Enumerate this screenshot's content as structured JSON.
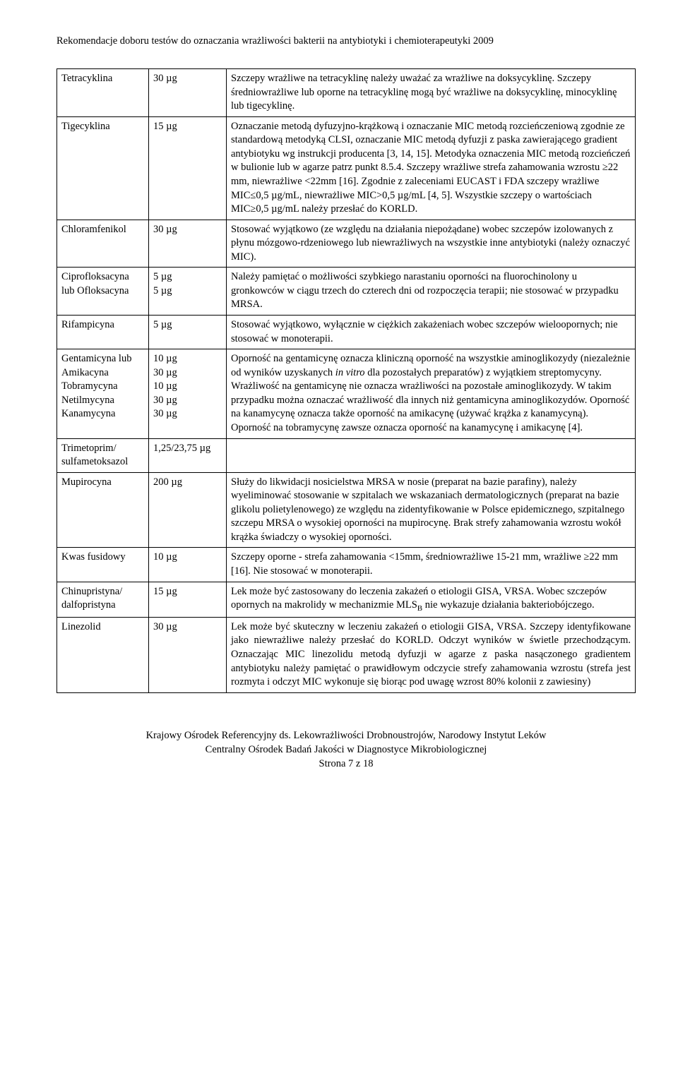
{
  "header": "Rekomendacje doboru testów do oznaczania wrażliwości bakterii na antybiotyki i chemioterapeutyki 2009",
  "rows": [
    {
      "name": "Tetracyklina",
      "dose": "30 µg",
      "desc": "Szczepy wrażliwe na tetracyklinę należy uważać za wrażliwe na doksycyklinę. Szczepy średniowrażliwe lub oporne na tetracyklinę mogą być wrażliwe na doksycyklinę, minocyklinę lub tigecyklinę."
    },
    {
      "name": "Tigecyklina",
      "dose": "15 µg",
      "desc": "Oznaczanie metodą dyfuzyjno-krążkową i oznaczanie MIC metodą rozcieńczeniową zgodnie ze standardową metodyką CLSI, oznaczanie MIC metodą dyfuzji z paska zawierającego gradient antybiotyku wg instrukcji producenta [3, 14, 15]. Metodyka oznaczenia MIC metodą rozcieńczeń w bulionie lub w agarze patrz punkt 8.5.4. Szczepy wrażliwe strefa zahamowania wzrostu ≥22 mm, niewrażliwe <22mm [16]. Zgodnie z zaleceniami EUCAST i FDA szczepy wrażliwe MIC≤0,5 µg/mL, niewrażliwe MIC>0,5 µg/mL [4, 5]. Wszystkie szczepy o wartościach MIC≥0,5 µg/mL należy przesłać do KORLD."
    },
    {
      "name": "Chloramfenikol",
      "dose": "30 µg",
      "desc": "Stosować wyjątkowo (ze względu na działania niepożądane) wobec szczepów izolowanych z płynu mózgowo-rdzeniowego lub niewrażliwych na wszystkie inne antybiotyki (należy oznaczyć MIC)."
    },
    {
      "name": "Ciprofloksacyna\nlub Ofloksacyna",
      "dose": "5 µg\n5 µg",
      "desc": "Należy pamiętać o możliwości szybkiego narastaniu oporności na fluorochinolony u gronkowców w ciągu trzech do czterech dni od rozpoczęcia terapii; nie stosować w przypadku MRSA."
    },
    {
      "name": "Rifampicyna",
      "dose": "5 µg",
      "desc": "Stosować wyjątkowo, wyłącznie w ciężkich zakażeniach wobec szczepów wieloopornych; nie stosować w monoterapii."
    },
    {
      "name": "Gentamicyna lub\nAmikacyna\nTobramycyna\nNetilmycyna\nKanamycyna",
      "dose": "10 µg\n30 µg\n10 µg\n30 µg\n30 µg",
      "desc_html": "Oporność na gentamicynę oznacza kliniczną oporność na wszystkie aminoglikozydy (niezależnie od wyników uzyskanych <i>in vitro</i> dla pozostałych preparatów) z wyjątkiem streptomycyny. Wrażliwość na gentamicynę nie oznacza wrażliwości na pozostałe aminoglikozydy. W takim przypadku można oznaczać wrażliwość dla innych niż gentamicyna aminoglikozydów. Oporność na kanamycynę oznacza także oporność na amikacynę (używać krążka z kanamycyną). Oporność na tobramycynę zawsze oznacza oporność na kanamycynę i amikacynę [4]."
    },
    {
      "name": "Trimetoprim/\nsulfametoksazol",
      "dose": "1,25/23,75 µg",
      "desc": ""
    },
    {
      "name": "Mupirocyna",
      "dose": "200 µg",
      "desc": "Służy do likwidacji nosicielstwa MRSA w nosie (preparat na bazie parafiny), należy wyeliminować stosowanie w szpitalach we wskazaniach dermatologicznych (preparat na bazie glikolu polietylenowego) ze względu na zidentyfikowanie w Polsce epidemicznego, szpitalnego szczepu MRSA o wysokiej oporności na mupirocynę. Brak strefy zahamowania wzrostu wokół krążka świadczy o wysokiej oporności."
    },
    {
      "name": "Kwas fusidowy",
      "dose": "10 µg",
      "desc": "Szczepy oporne - strefa zahamowania <15mm, średniowrażliwe 15-21 mm, wrażliwe ≥22 mm [16]. Nie stosować w monoterapii."
    },
    {
      "name": "Chinupristyna/\ndalfopristyna",
      "dose": "15 µg",
      "desc_html": "Lek może być zastosowany do leczenia zakażeń o etiologii GISA, VRSA. Wobec szczepów opornych na makrolidy w mechanizmie MLS<span class=\"sub\">B</span> nie wykazuje działania bakteriobójczego."
    },
    {
      "name": "Linezolid",
      "dose": "30 µg",
      "desc": "Lek może być skuteczny w leczeniu zakażeń o etiologii GISA, VRSA. Szczepy identyfikowane jako niewrażliwe należy przesłać do KORLD. Odczyt wyników w świetle przechodzącym. Oznaczając MIC linezolidu metodą dyfuzji w agarze z paska nasączonego gradientem antybiotyku należy pamiętać o prawidłowym odczycie strefy zahamowania wzrostu (strefa jest rozmyta i odczyt MIC wykonuje się biorąc pod uwagę wzrost 80% kolonii z zawiesiny)",
      "justify": true
    }
  ],
  "footer": {
    "line1": "Krajowy Ośrodek Referencyjny ds. Lekowrażliwości Drobnoustrojów, Narodowy Instytut Leków",
    "line2": "Centralny Ośrodek Badań Jakości w Diagnostyce Mikrobiologicznej",
    "line3": "Strona 7 z 18"
  }
}
